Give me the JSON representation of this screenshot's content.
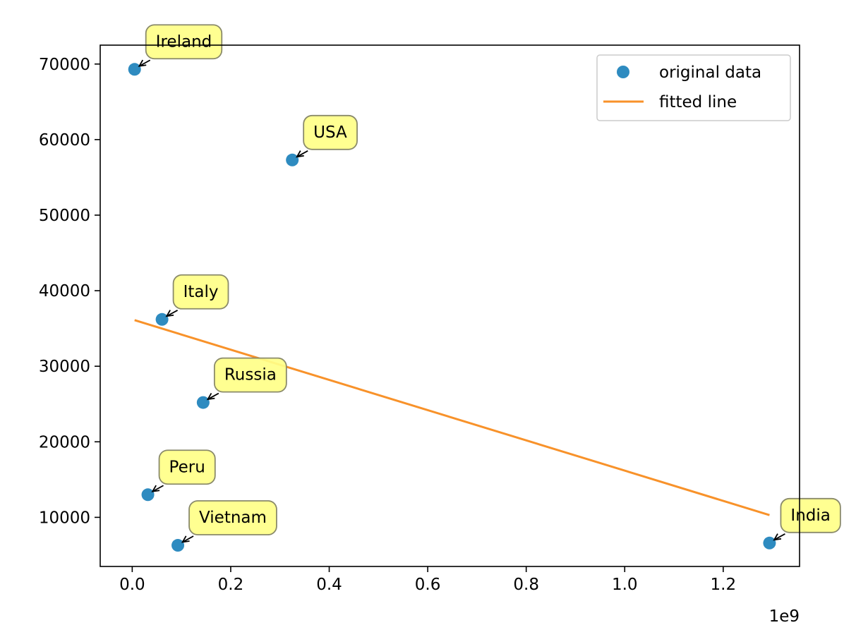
{
  "chart_data": {
    "type": "scatter",
    "title": "",
    "xlabel": "",
    "ylabel": "",
    "x_offset_label": "1e9",
    "xlim": [
      -0.065,
      1.355
    ],
    "ylim": [
      3500,
      72500
    ],
    "x_ticks": [
      0.0,
      0.2,
      0.4,
      0.6,
      0.8,
      1.0,
      1.2
    ],
    "x_tick_labels": [
      "0.0",
      "0.2",
      "0.4",
      "0.6",
      "0.8",
      "1.0",
      "1.2"
    ],
    "y_ticks": [
      10000,
      20000,
      30000,
      40000,
      50000,
      60000,
      70000
    ],
    "y_tick_labels": [
      "10000",
      "20000",
      "30000",
      "40000",
      "50000",
      "60000",
      "70000"
    ],
    "grid": false,
    "legend_position": "top-right",
    "series": [
      {
        "name": "original data",
        "kind": "scatter",
        "color": "#2e8bc0",
        "points": [
          {
            "label": "Ireland",
            "x": 0.0048,
            "y": 69300
          },
          {
            "label": "USA",
            "x": 0.325,
            "y": 57300
          },
          {
            "label": "Italy",
            "x": 0.0605,
            "y": 36200
          },
          {
            "label": "Russia",
            "x": 0.144,
            "y": 25200
          },
          {
            "label": "Peru",
            "x": 0.0318,
            "y": 13000
          },
          {
            "label": "Vietnam",
            "x": 0.0927,
            "y": 6300
          },
          {
            "label": "India",
            "x": 1.294,
            "y": 6600
          }
        ]
      },
      {
        "name": "fitted line",
        "kind": "line",
        "color": "#f8922a",
        "points": [
          {
            "x": 0.0048,
            "y": 36100
          },
          {
            "x": 1.294,
            "y": 10300
          }
        ]
      }
    ],
    "annotation_style": {
      "box_fill": "#ffff88",
      "box_stroke": "#8a8a6a",
      "arrow_color": "#000000"
    }
  }
}
